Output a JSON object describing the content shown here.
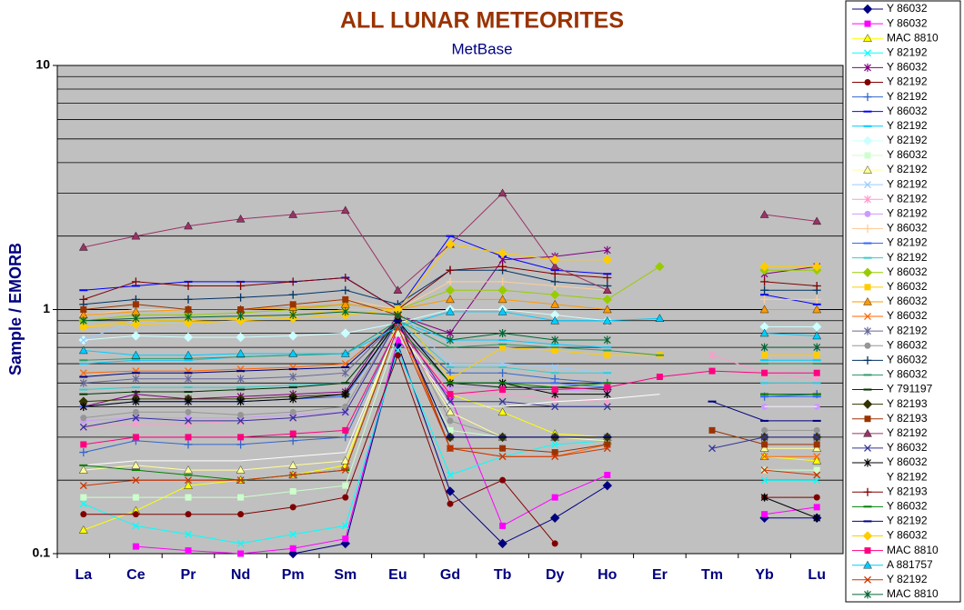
{
  "chart_data": {
    "type": "line",
    "title": "ALL LUNAR METEORITES",
    "subtitle": "MetBase",
    "y_label": "Sample / EMORB",
    "y_scale": "log",
    "ylim": [
      0.1,
      10
    ],
    "yticks": [
      0.1,
      1,
      10
    ],
    "y_minor_grid": [
      0.2,
      0.3,
      0.4,
      0.5,
      0.6,
      0.7,
      0.8,
      0.9,
      2,
      3,
      4,
      5,
      6,
      7,
      8,
      9
    ],
    "grid": true,
    "legend": "right",
    "categories": [
      "La",
      "Ce",
      "Pr",
      "Nd",
      "Pm",
      "Sm",
      "Eu",
      "Gd",
      "Tb",
      "Dy",
      "Ho",
      "Er",
      "Tm",
      "Yb",
      "Lu"
    ],
    "series": [
      {
        "name": "Y 86032",
        "color": "#000080",
        "marker": "diamond",
        "values": [
          null,
          null,
          null,
          null,
          0.1,
          0.11,
          0.72,
          0.18,
          0.11,
          0.14,
          0.19,
          null,
          null,
          0.14,
          0.14
        ]
      },
      {
        "name": "Y 86032",
        "color": "#ff00ff",
        "marker": "square",
        "values": [
          null,
          0.107,
          0.103,
          0.1,
          0.105,
          0.115,
          0.75,
          0.44,
          0.13,
          0.17,
          0.21,
          null,
          null,
          0.145,
          0.155
        ]
      },
      {
        "name": "MAC 8810",
        "color": "#ffff00",
        "marker": "triangle",
        "values": [
          0.125,
          0.15,
          0.19,
          0.2,
          0.21,
          0.23,
          0.9,
          0.45,
          0.38,
          0.31,
          0.3,
          null,
          null,
          0.25,
          0.24
        ]
      },
      {
        "name": "Y 82192",
        "color": "#00ffff",
        "marker": "x",
        "values": [
          0.16,
          0.13,
          0.12,
          0.11,
          0.12,
          0.13,
          0.68,
          0.21,
          0.25,
          0.28,
          0.29,
          null,
          null,
          0.2,
          0.2
        ]
      },
      {
        "name": "Y 86032",
        "color": "#800080",
        "marker": "star",
        "values": [
          0.4,
          0.45,
          0.43,
          0.44,
          0.45,
          0.46,
          0.95,
          0.8,
          1.6,
          1.65,
          1.75,
          null,
          null,
          1.4,
          1.5
        ]
      },
      {
        "name": "Y 82192",
        "color": "#800000",
        "marker": "circle",
        "values": [
          0.145,
          0.145,
          0.145,
          0.145,
          0.155,
          0.17,
          0.65,
          0.16,
          0.2,
          0.11,
          null,
          null,
          null,
          0.17,
          0.17
        ]
      },
      {
        "name": "Y 82192",
        "color": "#3366cc",
        "marker": "plus",
        "values": [
          0.26,
          0.29,
          0.28,
          0.28,
          0.29,
          0.3,
          0.85,
          0.55,
          0.55,
          0.52,
          0.5,
          null,
          null,
          0.44,
          0.45
        ]
      },
      {
        "name": "Y 86032",
        "color": "#0000ff",
        "marker": "dash",
        "values": [
          1.2,
          1.25,
          1.3,
          1.3,
          1.3,
          1.35,
          1.0,
          2.0,
          1.65,
          1.45,
          1.4,
          null,
          null,
          1.15,
          1.05
        ]
      },
      {
        "name": "Y 82192",
        "color": "#00ccff",
        "marker": "dash",
        "values": [
          0.6,
          0.62,
          0.62,
          0.64,
          0.65,
          0.66,
          0.9,
          0.75,
          0.75,
          0.72,
          0.7,
          null,
          null,
          0.62,
          0.62
        ]
      },
      {
        "name": "Y 82192",
        "color": "#ccffff",
        "marker": "diamond",
        "values": [
          0.75,
          0.78,
          0.77,
          0.77,
          0.78,
          0.8,
          0.88,
          1.0,
          1.0,
          0.95,
          0.9,
          null,
          null,
          0.85,
          0.85
        ]
      },
      {
        "name": "Y 86032",
        "color": "#ccffcc",
        "marker": "square",
        "values": [
          0.17,
          0.17,
          0.17,
          0.17,
          0.18,
          0.19,
          0.8,
          0.32,
          0.3,
          0.3,
          0.3,
          null,
          null,
          0.22,
          0.22
        ]
      },
      {
        "name": "Y 82192",
        "color": "#ffff99",
        "marker": "triangle",
        "values": [
          0.22,
          0.23,
          0.22,
          0.22,
          0.23,
          0.24,
          0.85,
          0.38,
          0.3,
          0.3,
          0.29,
          null,
          null,
          0.27,
          0.27
        ]
      },
      {
        "name": "Y 82192",
        "color": "#99ccff",
        "marker": "x",
        "values": [
          0.75,
          0.9,
          0.88,
          0.9,
          0.95,
          1.0,
          1.0,
          0.6,
          0.6,
          0.58,
          0.55,
          null,
          null,
          0.5,
          0.5
        ]
      },
      {
        "name": "Y 82192",
        "color": "#ff99cc",
        "marker": "star",
        "values": [
          0.33,
          0.34,
          0.34,
          0.35,
          0.36,
          0.38,
          0.9,
          0.45,
          0.45,
          0.43,
          0.42,
          null,
          0.65,
          0.55,
          0.52
        ]
      },
      {
        "name": "Y 82192",
        "color": "#cc99ff",
        "marker": "circle",
        "values": [
          0.35,
          0.36,
          0.36,
          0.36,
          0.37,
          0.38,
          0.9,
          0.48,
          0.48,
          0.47,
          0.46,
          null,
          null,
          0.4,
          0.4
        ]
      },
      {
        "name": "Y 86032",
        "color": "#ffcc99",
        "marker": "plus",
        "values": [
          0.95,
          1.0,
          1.0,
          1.0,
          1.05,
          1.1,
          1.0,
          1.3,
          1.3,
          1.25,
          1.2,
          null,
          null,
          1.1,
          1.1
        ]
      },
      {
        "name": "Y 82192",
        "color": "#3366ff",
        "marker": "dash",
        "values": [
          0.4,
          0.42,
          0.42,
          0.42,
          0.43,
          0.44,
          0.9,
          0.5,
          0.5,
          0.5,
          0.48,
          null,
          null,
          0.44,
          0.44
        ]
      },
      {
        "name": "Y 82192",
        "color": "#33cccc",
        "marker": "dash",
        "values": [
          0.47,
          0.48,
          0.48,
          0.48,
          0.49,
          0.5,
          0.9,
          0.58,
          0.58,
          0.55,
          0.55,
          null,
          null,
          0.5,
          0.5
        ]
      },
      {
        "name": "Y 86032",
        "color": "#99cc00",
        "marker": "diamond",
        "values": [
          0.9,
          0.95,
          0.95,
          0.97,
          1.0,
          1.05,
          1.0,
          1.2,
          1.2,
          1.15,
          1.1,
          1.5,
          null,
          1.45,
          1.45
        ]
      },
      {
        "name": "Y 86032",
        "color": "#ffcc00",
        "marker": "square",
        "values": [
          0.85,
          0.9,
          0.9,
          0.92,
          0.95,
          1.0,
          1.0,
          0.52,
          0.7,
          0.68,
          0.65,
          0.65,
          null,
          0.65,
          0.65
        ]
      },
      {
        "name": "Y 86032",
        "color": "#ff9900",
        "marker": "triangle",
        "values": [
          0.95,
          0.98,
          1.0,
          1.0,
          1.02,
          1.05,
          1.0,
          1.1,
          1.1,
          1.05,
          1.0,
          null,
          null,
          1.0,
          1.0
        ]
      },
      {
        "name": "Y 86032",
        "color": "#ff6600",
        "marker": "x",
        "values": [
          0.55,
          0.56,
          0.56,
          0.57,
          0.58,
          0.6,
          0.9,
          0.27,
          0.25,
          0.25,
          0.28,
          null,
          null,
          0.25,
          0.25
        ]
      },
      {
        "name": "Y 82192",
        "color": "#666699",
        "marker": "star",
        "values": [
          0.5,
          0.52,
          0.52,
          0.52,
          0.53,
          0.55,
          0.9,
          0.3,
          0.3,
          0.3,
          0.3,
          null,
          null,
          0.3,
          0.3
        ]
      },
      {
        "name": "Y 86032",
        "color": "#969696",
        "marker": "circle",
        "values": [
          0.36,
          0.38,
          0.38,
          0.37,
          0.38,
          0.4,
          0.9,
          0.35,
          0.3,
          0.3,
          0.3,
          null,
          null,
          0.32,
          0.32
        ]
      },
      {
        "name": "Y 86032",
        "color": "#003366",
        "marker": "plus",
        "values": [
          1.05,
          1.1,
          1.1,
          1.12,
          1.15,
          1.2,
          1.05,
          1.45,
          1.45,
          1.3,
          1.25,
          null,
          null,
          1.2,
          1.2
        ]
      },
      {
        "name": "Y 86032",
        "color": "#339966",
        "marker": "dash",
        "values": [
          0.62,
          0.63,
          0.63,
          0.64,
          0.65,
          0.66,
          0.9,
          0.7,
          0.72,
          0.7,
          0.68,
          0.65,
          null,
          0.6,
          0.6
        ]
      },
      {
        "name": "Y 791197",
        "color": "#003300",
        "marker": "dash",
        "values": [
          0.45,
          0.46,
          0.46,
          0.47,
          0.48,
          0.5,
          0.9,
          0.5,
          0.48,
          0.48,
          0.47,
          null,
          null,
          0.45,
          0.45
        ]
      },
      {
        "name": "Y 82193",
        "color": "#333300",
        "marker": "diamond",
        "values": [
          0.42,
          0.43,
          0.43,
          0.43,
          0.44,
          0.45,
          0.9,
          0.3,
          0.3,
          0.3,
          0.3,
          null,
          null,
          0.3,
          0.3
        ]
      },
      {
        "name": "Y 82193",
        "color": "#993300",
        "marker": "square",
        "values": [
          1.0,
          1.05,
          1.0,
          1.0,
          1.05,
          1.1,
          0.95,
          0.27,
          0.27,
          0.26,
          0.28,
          null,
          0.32,
          0.28,
          0.28
        ]
      },
      {
        "name": "Y 82192",
        "color": "#993366",
        "marker": "triangle",
        "values": [
          1.8,
          2.0,
          2.2,
          2.35,
          2.45,
          2.55,
          1.2,
          1.85,
          3.0,
          1.5,
          1.2,
          null,
          null,
          2.45,
          2.3
        ]
      },
      {
        "name": "Y 86032",
        "color": "#333399",
        "marker": "x",
        "values": [
          0.33,
          0.36,
          0.35,
          0.35,
          0.36,
          0.38,
          0.9,
          0.42,
          0.42,
          0.4,
          0.4,
          null,
          0.27,
          0.3,
          0.3
        ]
      },
      {
        "name": "Y 86032",
        "color": "#000000",
        "marker": "star",
        "values": [
          0.4,
          0.42,
          0.42,
          0.42,
          0.43,
          0.45,
          0.9,
          0.5,
          0.5,
          0.45,
          0.45,
          null,
          null,
          0.17,
          0.14
        ]
      },
      {
        "name": "Y 82192",
        "color": "#ffffff",
        "marker": "none",
        "values": [
          0.23,
          0.24,
          0.24,
          0.24,
          0.25,
          0.26,
          0.85,
          0.4,
          0.4,
          0.42,
          0.43,
          0.45,
          null,
          0.4,
          0.4
        ]
      },
      {
        "name": "Y 82193",
        "color": "#800000",
        "marker": "plus",
        "values": [
          1.1,
          1.3,
          1.25,
          1.25,
          1.3,
          1.35,
          1.0,
          1.45,
          1.5,
          1.4,
          1.35,
          null,
          null,
          1.3,
          1.25
        ]
      },
      {
        "name": "Y 86032",
        "color": "#008000",
        "marker": "dash",
        "values": [
          0.23,
          0.22,
          0.21,
          0.2,
          0.21,
          0.22,
          0.85,
          0.5,
          0.5,
          0.48,
          0.5,
          null,
          null,
          0.45,
          0.45
        ]
      },
      {
        "name": "Y 82192",
        "color": "#000080",
        "marker": "dash",
        "values": [
          0.53,
          0.55,
          0.55,
          0.56,
          0.57,
          0.58,
          0.9,
          0.3,
          0.3,
          0.3,
          0.3,
          null,
          0.42,
          0.35,
          0.35
        ]
      },
      {
        "name": "Y 86032",
        "color": "#ffcc00",
        "marker": "diamond",
        "values": [
          0.85,
          0.87,
          0.88,
          0.9,
          0.92,
          0.95,
          1.0,
          1.85,
          1.7,
          1.6,
          1.6,
          null,
          null,
          1.5,
          1.5
        ]
      },
      {
        "name": "MAC 8810",
        "color": "#ff0080",
        "marker": "square",
        "values": [
          0.28,
          0.3,
          0.3,
          0.3,
          0.31,
          0.32,
          0.85,
          0.45,
          0.47,
          0.47,
          0.48,
          0.53,
          0.56,
          0.55,
          0.55
        ]
      },
      {
        "name": "A 881757",
        "color": "#00ccff",
        "marker": "triangle",
        "values": [
          0.68,
          0.65,
          0.65,
          0.66,
          0.66,
          0.66,
          0.85,
          0.98,
          0.98,
          0.9,
          0.9,
          0.92,
          null,
          0.8,
          0.78
        ]
      },
      {
        "name": "Y 82192",
        "color": "#cc3300",
        "marker": "x",
        "values": [
          0.19,
          0.2,
          0.2,
          0.2,
          0.21,
          0.22,
          0.85,
          0.27,
          0.25,
          0.25,
          0.27,
          null,
          null,
          0.22,
          0.21
        ]
      },
      {
        "name": "MAC 8810",
        "color": "#006633",
        "marker": "star",
        "values": [
          0.9,
          0.92,
          0.93,
          0.94,
          0.95,
          0.98,
          0.95,
          0.75,
          0.8,
          0.75,
          0.75,
          null,
          null,
          0.7,
          0.7
        ]
      }
    ]
  }
}
